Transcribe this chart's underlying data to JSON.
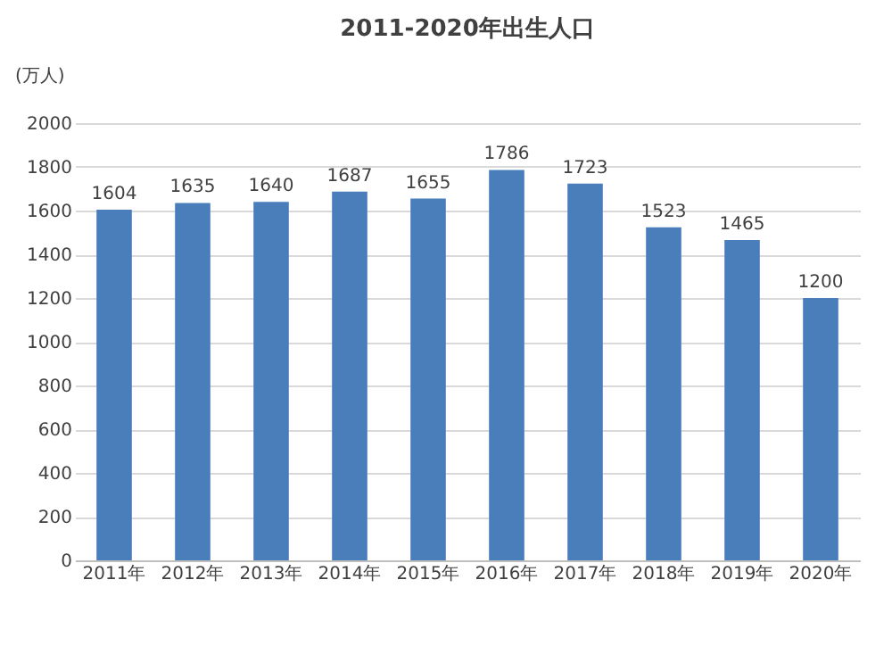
{
  "chart_data": {
    "type": "bar",
    "title": "2011-2020年出生人口",
    "ylabel": "(万人)",
    "categories": [
      "2011年",
      "2012年",
      "2013年",
      "2014年",
      "2015年",
      "2016年",
      "2017年",
      "2018年",
      "2019年",
      "2020年"
    ],
    "values": [
      1604,
      1635,
      1640,
      1687,
      1655,
      1786,
      1723,
      1523,
      1465,
      1200
    ],
    "color": "#4a7ebb",
    "ylim": [
      0,
      2000
    ],
    "yticks": [
      0,
      200,
      400,
      600,
      800,
      1000,
      1200,
      1400,
      1600,
      1800,
      2000
    ],
    "grid": "y",
    "data_labels": true
  }
}
